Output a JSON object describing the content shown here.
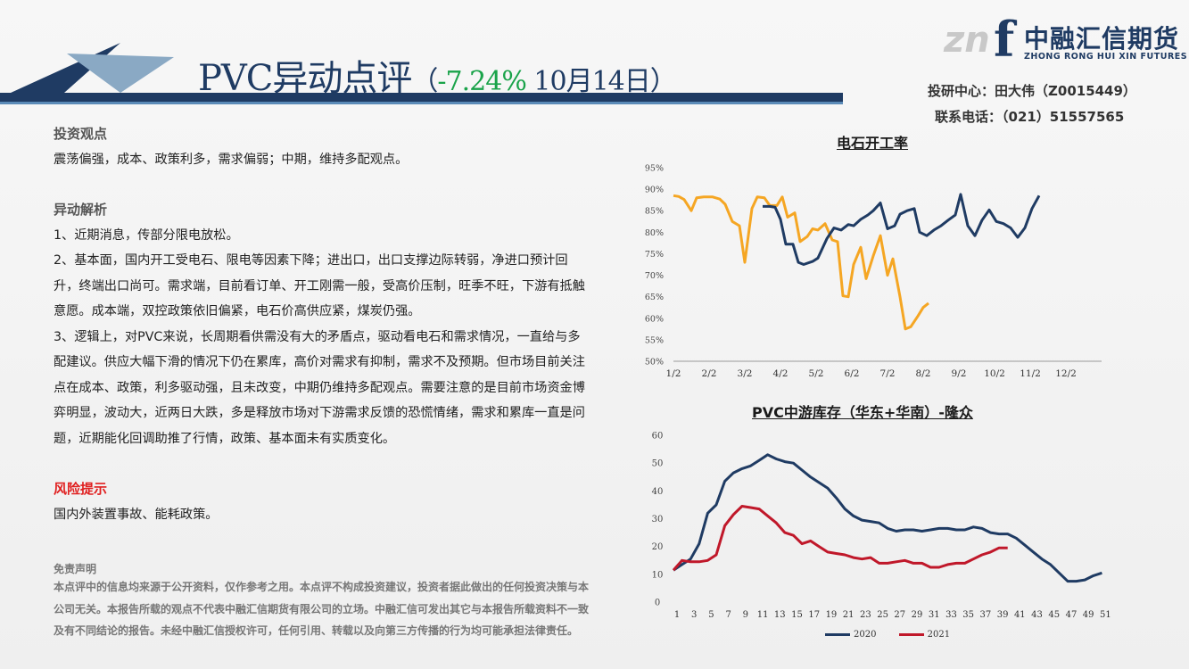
{
  "header": {
    "title_main": "PVC异动点评",
    "paren_open": "（",
    "pct": "-7.24%",
    "date": "10月14日",
    "paren_close": "）"
  },
  "logo": {
    "mark": "zn",
    "f": "f",
    "cn": "中融汇信期货",
    "en": "ZHONG RONG HUI XIN FUTURES"
  },
  "contact": {
    "line1": "投研中心：田大伟（Z0015449）",
    "line2": "联系电话：（021）51557565"
  },
  "content": {
    "view_title": "投资观点",
    "view_text": "震荡偏强，成本、政策利多，需求偏弱；中期，维持多配观点。",
    "analysis_title": "异动解析",
    "p1": "1、近期消息，传部分限电放松。",
    "p2": "2、基本面，国内开工受电石、限电等因素下降；进出口，出口支撑边际转弱，净进口预计回升，终端出口尚可。需求端，目前看订单、开工刚需一般，受高价压制，旺季不旺，下游有抵触意愿。成本端，双控政策依旧偏紧，电石价高供应紧，煤炭仍强。",
    "p3": "3、逻辑上，对PVC来说，长周期看供需没有大的矛盾点，驱动看电石和需求情况，一直给与多配建议。供应大幅下滑的情况下仍在累库，高价对需求有抑制，需求不及预期。但市场目前关注点在成本、政策，利多驱动强，且未改变，中期仍维持多配观点。需要注意的是目前市场资金博弈明显，波动大，近两日大跌，多是释放市场对下游需求反馈的恐慌情绪，需求和累库一直是问题，近期能化回调助推了行情，政策、基本面未有实质变化。",
    "risk_title": "风险提示",
    "risk_text": "国内外装置事故、能耗政策。"
  },
  "disclaimer": {
    "title": "免责声明",
    "text": "本点评中的信息均来源于公开资料，仅作参考之用。本点评不构成投资建议，投资者据此做出的任何投资决策与本公司无关。本报告所载的观点不代表中融汇信期货有限公司的立场。中融汇信可发出其它与本报告所载资料不一致及有不同结论的报告。未经中融汇信授权许可，任何引用、转载以及向第三方传播的行为均可能承担法律责任。"
  },
  "colors": {
    "navy": "#1f3b63",
    "orange": "#f5a623",
    "red": "#c0182a",
    "green": "#1aa34a",
    "risk": "#e02020"
  },
  "chart_data": [
    {
      "type": "line",
      "title": "电石开工率",
      "x_ticks": [
        "1/2",
        "2/2",
        "3/2",
        "4/2",
        "5/2",
        "6/2",
        "7/2",
        "8/2",
        "9/2",
        "10/2",
        "11/2",
        "12/2"
      ],
      "y_ticks": [
        "95%",
        "90%",
        "85%",
        "80%",
        "75%",
        "70%",
        "65%",
        "60%",
        "55%",
        "50%"
      ],
      "ylim": [
        50,
        95
      ],
      "x_domain": [
        0,
        12
      ],
      "series": [
        {
          "color": "#f5a623",
          "points": [
            [
              0,
              88.5
            ],
            [
              0.15,
              88.3
            ],
            [
              0.3,
              87.6
            ],
            [
              0.5,
              85.0
            ],
            [
              0.65,
              88.0
            ],
            [
              0.85,
              88.2
            ],
            [
              1.1,
              88.2
            ],
            [
              1.3,
              87.7
            ],
            [
              1.45,
              86.5
            ],
            [
              1.65,
              82.5
            ],
            [
              1.85,
              81.5
            ],
            [
              2.0,
              73.0
            ],
            [
              2.2,
              85.5
            ],
            [
              2.35,
              88.2
            ],
            [
              2.55,
              88.0
            ],
            [
              2.7,
              86.2
            ],
            [
              2.9,
              86.2
            ],
            [
              3.05,
              88.2
            ],
            [
              3.2,
              83.5
            ],
            [
              3.4,
              84.5
            ],
            [
              3.55,
              77.8
            ],
            [
              3.75,
              79.0
            ],
            [
              3.9,
              80.8
            ],
            [
              4.05,
              80.5
            ],
            [
              4.25,
              82.0
            ],
            [
              4.45,
              78.2
            ],
            [
              4.6,
              77.8
            ],
            [
              4.75,
              65.2
            ],
            [
              4.9,
              65.0
            ],
            [
              5.05,
              72.5
            ],
            [
              5.25,
              76.5
            ],
            [
              5.4,
              69.2
            ],
            [
              5.6,
              74.5
            ],
            [
              5.8,
              79.2
            ],
            [
              6.0,
              70.0
            ],
            [
              6.15,
              73.8
            ],
            [
              6.35,
              65.0
            ],
            [
              6.5,
              57.5
            ],
            [
              6.65,
              58.0
            ],
            [
              6.85,
              60.5
            ],
            [
              7.0,
              62.5
            ],
            [
              7.15,
              63.5
            ]
          ]
        },
        {
          "color": "#1f3b63",
          "points": [
            [
              2.5,
              86.0
            ],
            [
              2.7,
              86.0
            ],
            [
              2.85,
              85.8
            ],
            [
              3.0,
              83.0
            ],
            [
              3.15,
              77.2
            ],
            [
              3.35,
              77.2
            ],
            [
              3.5,
              73.0
            ],
            [
              3.65,
              72.5
            ],
            [
              3.9,
              73.2
            ],
            [
              4.05,
              74.0
            ],
            [
              4.3,
              78.5
            ],
            [
              4.5,
              81.0
            ],
            [
              4.7,
              80.5
            ],
            [
              4.9,
              81.8
            ],
            [
              5.05,
              81.5
            ],
            [
              5.25,
              83.0
            ],
            [
              5.45,
              84.0
            ],
            [
              5.6,
              85.0
            ],
            [
              5.8,
              86.8
            ],
            [
              6.0,
              80.8
            ],
            [
              6.2,
              81.5
            ],
            [
              6.35,
              84.2
            ],
            [
              6.55,
              85.0
            ],
            [
              6.75,
              85.5
            ],
            [
              6.9,
              80.0
            ],
            [
              7.1,
              79.2
            ],
            [
              7.3,
              80.5
            ],
            [
              7.5,
              81.5
            ],
            [
              7.7,
              82.8
            ],
            [
              7.9,
              84.0
            ],
            [
              8.05,
              88.8
            ],
            [
              8.25,
              81.5
            ],
            [
              8.45,
              79.2
            ],
            [
              8.65,
              82.8
            ],
            [
              8.85,
              85.2
            ],
            [
              9.05,
              82.5
            ],
            [
              9.25,
              82.0
            ],
            [
              9.45,
              81.0
            ],
            [
              9.65,
              78.8
            ],
            [
              9.85,
              81.0
            ],
            [
              10.05,
              85.5
            ],
            [
              10.25,
              88.5
            ]
          ]
        }
      ]
    },
    {
      "type": "line",
      "title": "PVC中游库存（华东+华南）-隆众",
      "x_ticks": [
        "1",
        "3",
        "5",
        "7",
        "9",
        "11",
        "13",
        "15",
        "17",
        "19",
        "21",
        "23",
        "25",
        "27",
        "29",
        "31",
        "33",
        "35",
        "37",
        "39",
        "41",
        "43",
        "45",
        "47",
        "49",
        "51"
      ],
      "y_ticks": [
        "60",
        "50",
        "40",
        "30",
        "20",
        "10",
        "0"
      ],
      "ylim": [
        0,
        60
      ],
      "series": [
        {
          "name": "2020",
          "color": "#1f3b63",
          "x": [
            1,
            2,
            3,
            4,
            5,
            6,
            7,
            8,
            9,
            10,
            11,
            12,
            13,
            14,
            15,
            16,
            17,
            18,
            19,
            20,
            21,
            22,
            23,
            24,
            25,
            26,
            27,
            28,
            29,
            30,
            31,
            32,
            33,
            34,
            35,
            36,
            37,
            38,
            39,
            40,
            41,
            42,
            43,
            44,
            45,
            46,
            47,
            48,
            49,
            50,
            51
          ],
          "values": [
            11.5,
            13.5,
            15.5,
            21,
            32,
            35,
            43.5,
            46.5,
            48,
            49,
            51,
            53,
            51.5,
            50.5,
            50,
            47.5,
            45,
            43,
            41,
            37.5,
            33.5,
            31,
            29.5,
            29,
            28.5,
            26.5,
            25.5,
            26,
            26,
            25.5,
            26,
            26.5,
            26.5,
            26,
            26,
            27,
            26.5,
            25,
            24.5,
            24.5,
            23,
            20.5,
            18,
            15.5,
            13.5,
            10.5,
            7.5,
            7.5,
            8,
            9.5,
            10.5
          ]
        },
        {
          "name": "2021",
          "color": "#c0182a",
          "x": [
            1,
            2,
            3,
            4,
            5,
            6,
            7,
            8,
            9,
            10,
            11,
            12,
            13,
            14,
            15,
            16,
            17,
            18,
            19,
            20,
            21,
            22,
            23,
            24,
            25,
            26,
            27,
            28,
            29,
            30,
            31,
            32,
            33,
            34,
            35,
            36,
            37,
            38,
            39,
            40
          ],
          "values": [
            11.5,
            15,
            14.5,
            14.5,
            15,
            17,
            27.5,
            31.5,
            34.5,
            34,
            33.5,
            31,
            28.5,
            25,
            24,
            21,
            22,
            20,
            18,
            17.5,
            17,
            16,
            15.5,
            16,
            14,
            14,
            14.5,
            15,
            14,
            14,
            12.5,
            12.5,
            13.5,
            14,
            14,
            15.5,
            17,
            18,
            19.5,
            19.5
          ]
        }
      ]
    }
  ]
}
